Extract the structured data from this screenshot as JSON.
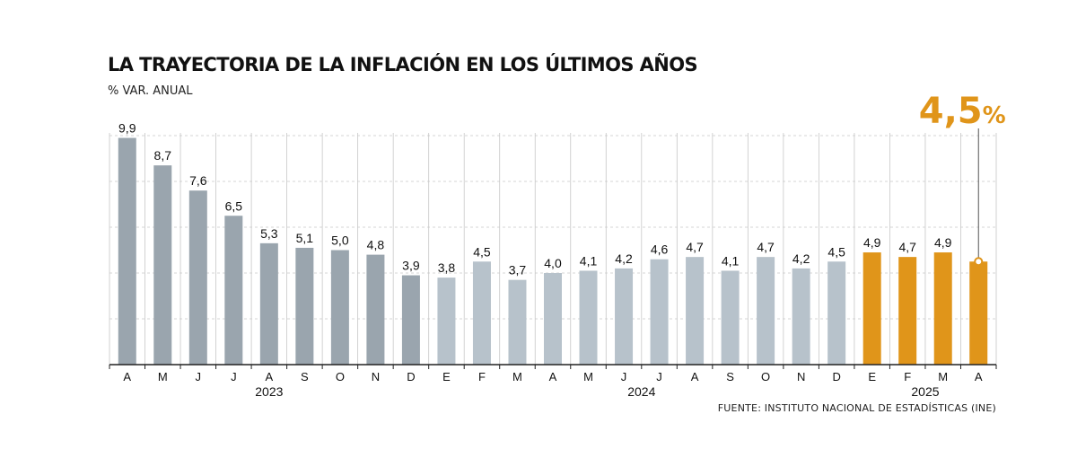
{
  "header": {
    "title": "LA TRAYECTORIA DE LA INFLACIÓN EN LOS ÚLTIMOS AÑOS",
    "subtitle": "% VAR. ANUAL"
  },
  "footer": {
    "source": "FUENTE: INSTITUTO NACIONAL DE ESTADÍSTICAS (INE)"
  },
  "callout": {
    "value": "4,5",
    "unit": "%"
  },
  "colors": {
    "dark_gray": "#9aa5ae",
    "light_gray": "#b7c2cb",
    "orange": "#e0951a",
    "gridline": "#c7c7c7",
    "axis": "#222222"
  },
  "chart_data": {
    "type": "bar",
    "title": "LA TRAYECTORIA DE LA INFLACIÓN EN LOS ÚLTIMOS AÑOS",
    "ylabel": "% VAR. ANUAL",
    "xlabel": "",
    "ylim": [
      0,
      10
    ],
    "grid": true,
    "categories": [
      "A",
      "M",
      "J",
      "J",
      "A",
      "S",
      "O",
      "N",
      "D",
      "E",
      "F",
      "M",
      "A",
      "M",
      "J",
      "J",
      "A",
      "S",
      "O",
      "N",
      "D",
      "E",
      "F",
      "M",
      "A"
    ],
    "values": [
      9.9,
      8.7,
      7.6,
      6.5,
      5.3,
      5.1,
      5.0,
      4.8,
      3.9,
      3.8,
      4.5,
      3.7,
      4.0,
      4.1,
      4.2,
      4.6,
      4.7,
      4.1,
      4.7,
      4.2,
      4.5,
      4.9,
      4.7,
      4.9,
      4.5
    ],
    "value_labels": [
      "9,9",
      "8,7",
      "7,6",
      "6,5",
      "5,3",
      "5,1",
      "5,0",
      "4,8",
      "3,9",
      "3,8",
      "4,5",
      "3,7",
      "4,0",
      "4,1",
      "4,2",
      "4,6",
      "4,7",
      "4,1",
      "4,7",
      "4,2",
      "4,5",
      "4,9",
      "4,7",
      "4,9",
      ""
    ],
    "years": [
      {
        "label": "2023",
        "from": 0,
        "to": 8,
        "color": "dark_gray"
      },
      {
        "label": "2024",
        "from": 9,
        "to": 20,
        "color": "light_gray"
      },
      {
        "label": "2025",
        "from": 21,
        "to": 24,
        "color": "orange"
      }
    ],
    "highlight_index": 24
  }
}
